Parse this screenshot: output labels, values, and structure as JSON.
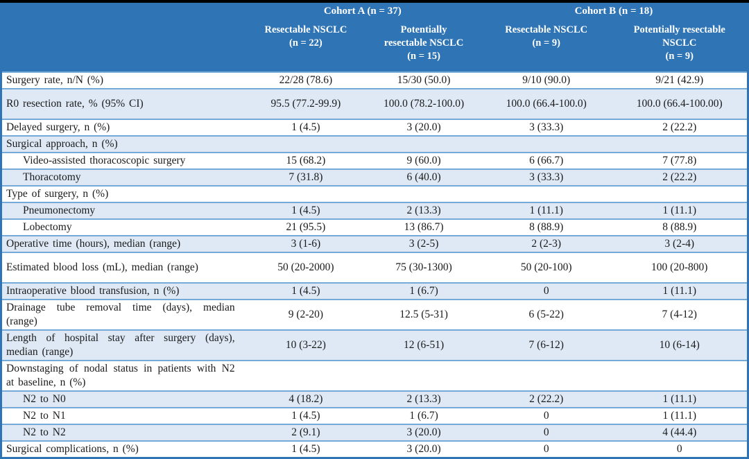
{
  "table": {
    "colors": {
      "page_bg": "#000000",
      "header_bg": "#2F74B4",
      "band_bg": "#DEE9F5",
      "border": "#74A9D8",
      "frame": "#2F74B4",
      "header_text": "#FFFFFF",
      "body_text": "#1A1A1A"
    },
    "header": {
      "groups": [
        {
          "label": "Cohort A (n = 37)",
          "span": 2
        },
        {
          "label": "Cohort B (n = 18)",
          "span": 2
        }
      ],
      "columns": [
        "Resectable NSCLC\n(n = 22)",
        "Potentially\nresectable NSCLC\n(n = 15)",
        "Resectable NSCLC\n(n = 9)",
        "Potentially resectable\nNSCLC\n(n = 9)"
      ]
    },
    "rows": [
      {
        "label": "Surgery rate, n/N (%)",
        "values": [
          "22/28 (78.6)",
          "15/30 (50.0)",
          "9/10 (90.0)",
          "9/21 (42.9)"
        ]
      },
      {
        "label": "R0 resection rate, % (95% CI)",
        "values": [
          "95.5 (77.2-99.9)",
          "100.0 (78.2-100.0)",
          "100.0 (66.4-100.0)",
          "100.0 (66.4-100.00)"
        ],
        "spacious": true
      },
      {
        "label": "Delayed surgery, n (%)",
        "values": [
          "1 (4.5)",
          "3 (20.0)",
          "3 (33.3)",
          "2 (22.2)"
        ]
      },
      {
        "label": "Surgical approach, n (%)",
        "values": [
          "",
          "",
          "",
          ""
        ],
        "section": true
      },
      {
        "label": "Video-assisted thoracoscopic surgery",
        "values": [
          "15 (68.2)",
          "9 (60.0)",
          "6 (66.7)",
          "7 (77.8)"
        ],
        "indent": true
      },
      {
        "label": "Thoracotomy",
        "values": [
          "7 (31.8)",
          "6 (40.0)",
          "3 (33.3)",
          "2 (22.2)"
        ],
        "indent": true
      },
      {
        "label": "Type of surgery, n (%)",
        "values": [
          "",
          "",
          "",
          ""
        ],
        "section": true
      },
      {
        "label": "Pneumonectomy",
        "values": [
          "1 (4.5)",
          "2 (13.3)",
          "1 (11.1)",
          "1 (11.1)"
        ],
        "indent": true
      },
      {
        "label": "Lobectomy",
        "values": [
          "21 (95.5)",
          "13 (86.7)",
          "8 (88.9)",
          "8 (88.9)"
        ],
        "indent": true
      },
      {
        "label": "Operative time (hours), median (range)",
        "values": [
          "3 (1-6)",
          "3 (2-5)",
          "2 (2-3)",
          "3 (2-4)"
        ]
      },
      {
        "label": "Estimated blood loss (mL), median (range)",
        "values": [
          "50 (20-2000)",
          "75 (30-1300)",
          "50 (20-100)",
          "100 (20-800)"
        ],
        "spacious": true
      },
      {
        "label": "Intraoperative blood transfusion, n (%)",
        "values": [
          "1 (4.5)",
          "1 (6.7)",
          "0",
          "1 (11.1)"
        ]
      },
      {
        "label": "Drainage tube removal time (days), median (range)",
        "values": [
          "9 (2-20)",
          "12.5 (5-31)",
          "6 (5-22)",
          "7 (4-12)"
        ]
      },
      {
        "label": "Length of hospital stay after surgery (days), median (range)",
        "values": [
          "10 (3-22)",
          "12 (6-51)",
          "7 (6-12)",
          "10 (6-14)"
        ]
      },
      {
        "label": "Downstaging of nodal status in patients with N2 at baseline, n (%)",
        "values": [
          "",
          "",
          "",
          ""
        ],
        "section": true
      },
      {
        "label": "N2 to N0",
        "values": [
          "4 (18.2)",
          "2 (13.3)",
          "2 (22.2)",
          "1 (11.1)"
        ],
        "indent": true
      },
      {
        "label": "N2 to N1",
        "values": [
          "1 (4.5)",
          "1 (6.7)",
          "0",
          "1 (11.1)"
        ],
        "indent": true
      },
      {
        "label": "N2 to N2",
        "values": [
          "2 (9.1)",
          "3 (20.0)",
          "0",
          "4 (44.4)"
        ],
        "indent": true
      },
      {
        "label": "Surgical complications, n (%)",
        "values": [
          "1 (4.5)",
          "3 (20.0)",
          "0",
          "0"
        ]
      }
    ]
  }
}
